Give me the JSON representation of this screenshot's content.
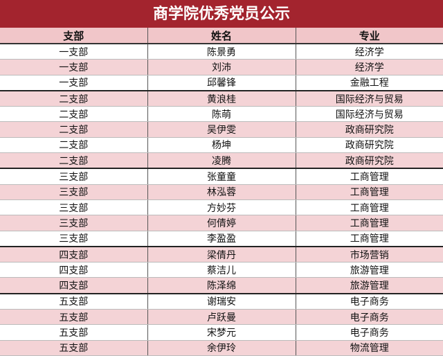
{
  "title": "商学院优秀党员公示",
  "table": {
    "header": [
      "支部",
      "姓名",
      "专业"
    ],
    "rows": [
      [
        "一支部",
        "陈景勇",
        "经济学"
      ],
      [
        "一支部",
        "刘沛",
        "经济学"
      ],
      [
        "一支部",
        "邱馨锋",
        "金融工程"
      ],
      [
        "二支部",
        "黄浪桂",
        "国际经济与贸易"
      ],
      [
        "二支部",
        "陈萌",
        "国际经济与贸易"
      ],
      [
        "二支部",
        "吴伊雯",
        "政商研究院"
      ],
      [
        "二支部",
        "杨坤",
        "政商研究院"
      ],
      [
        "二支部",
        "凌腾",
        "政商研究院"
      ],
      [
        "三支部",
        "张童童",
        "工商管理"
      ],
      [
        "三支部",
        "林泓蓉",
        "工商管理"
      ],
      [
        "三支部",
        "方妙芬",
        "工商管理"
      ],
      [
        "三支部",
        "何倩婷",
        "工商管理"
      ],
      [
        "三支部",
        "李盈盈",
        "工商管理"
      ],
      [
        "四支部",
        "梁倩丹",
        "市场营销"
      ],
      [
        "四支部",
        "蔡洁儿",
        "旅游管理"
      ],
      [
        "四支部",
        "陈泽绵",
        "旅游管理"
      ],
      [
        "五支部",
        "谢瑞安",
        "电子商务"
      ],
      [
        "五支部",
        "卢跃曼",
        "电子商务"
      ],
      [
        "五支部",
        "宋梦元",
        "电子商务"
      ],
      [
        "五支部",
        "余伊玲",
        "物流管理"
      ]
    ]
  }
}
